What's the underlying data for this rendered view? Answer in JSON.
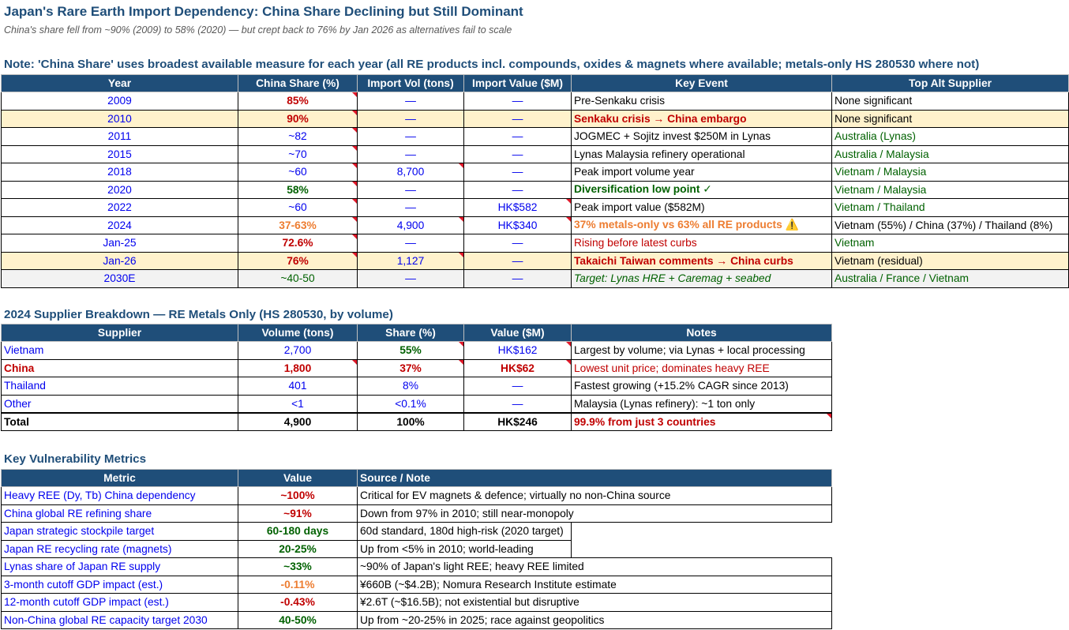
{
  "header": {
    "title": "Japan's Rare Earth Import Dependency: China Share Declining but Still Dominant",
    "subtitle": "China's share fell from ~90% (2009) to 58% (2020) — but crept back to 76% by Jan 2026 as alternatives fail to scale",
    "note": "Note: 'China Share' uses broadest available measure for each year (all RE products incl. compounds, oxides & magnets where available; metals-only HS 280530 where not)"
  },
  "timeline": {
    "columns": [
      "Year",
      "China Share (%)",
      "Import Vol (tons)",
      "Import Value ($M)",
      "Key Event",
      "Top Alt Supplier"
    ],
    "rows": [
      {
        "year": "2009",
        "share": "85%",
        "vol": "—",
        "value": "—",
        "event": "Pre-Senkaku crisis",
        "supplier": "None significant"
      },
      {
        "year": "2010",
        "share": "90%",
        "vol": "—",
        "value": "—",
        "event": "Senkaku crisis → China embargo",
        "supplier": "None significant"
      },
      {
        "year": "2011",
        "share": "~82",
        "vol": "—",
        "value": "—",
        "event": "JOGMEC + Sojitz invest $250M in Lynas",
        "supplier": "Australia (Lynas)"
      },
      {
        "year": "2015",
        "share": "~70",
        "vol": "—",
        "value": "—",
        "event": "Lynas Malaysia refinery operational",
        "supplier": "Australia / Malaysia"
      },
      {
        "year": "2018",
        "share": "~60",
        "vol": "8,700",
        "value": "—",
        "event": "Peak import volume year",
        "supplier": "Vietnam / Malaysia"
      },
      {
        "year": "2020",
        "share": "58%",
        "vol": "—",
        "value": "—",
        "event": "Diversification low point ✓",
        "supplier": "Vietnam / Malaysia"
      },
      {
        "year": "2022",
        "share": "~60",
        "vol": "—",
        "value": "HK$582",
        "event": "Peak import value ($582M)",
        "supplier": "Vietnam / Thailand"
      },
      {
        "year": "2024",
        "share": "37-63%",
        "vol": "4,900",
        "value": "HK$340",
        "event": "37% metals-only vs 63% all RE products ⚠️",
        "supplier": "Vietnam (55%) / China (37%) / Thailand (8%)"
      },
      {
        "year": "Jan-25",
        "share": "72.6%",
        "vol": "—",
        "value": "—",
        "event": "Rising before latest curbs",
        "supplier": "Vietnam"
      },
      {
        "year": "Jan-26",
        "share": "76%",
        "vol": "1,127",
        "value": "—",
        "event": "Takaichi Taiwan comments → China curbs",
        "supplier": "Vietnam (residual)"
      },
      {
        "year": "2030E",
        "share": "~40-50",
        "vol": "—",
        "value": "—",
        "event": "Target: Lynas HRE + Caremag + seabed",
        "supplier": "Australia / France / Vietnam"
      }
    ]
  },
  "breakdown": {
    "title": "2024 Supplier Breakdown — RE Metals Only (HS 280530, by volume)",
    "columns": [
      "Supplier",
      "Volume (tons)",
      "Share (%)",
      "Value ($M)",
      "Notes"
    ],
    "rows": [
      {
        "supplier": "Vietnam",
        "volume": "2,700",
        "share": "55%",
        "value": "HK$162",
        "notes": "Largest by volume; via Lynas + local processing"
      },
      {
        "supplier": "China",
        "volume": "1,800",
        "share": "37%",
        "value": "HK$62",
        "notes": "Lowest unit price; dominates heavy REE"
      },
      {
        "supplier": "Thailand",
        "volume": "401",
        "share": "8%",
        "value": "—",
        "notes": "Fastest growing (+15.2% CAGR since 2013)"
      },
      {
        "supplier": "Other",
        "volume": "<1",
        "share": "<0.1%",
        "value": "—",
        "notes": "Malaysia (Lynas refinery): ~1 ton only"
      }
    ],
    "total": {
      "supplier": "Total",
      "volume": "4,900",
      "share": "100%",
      "value": "HK$246",
      "notes": "99.9% from just 3 countries"
    }
  },
  "metrics": {
    "title": "Key Vulnerability Metrics",
    "columns": [
      "Metric",
      "Value",
      "Source / Note"
    ],
    "rows": [
      {
        "metric": "Heavy REE (Dy, Tb) China dependency",
        "value": "~100%",
        "note": "Critical for EV magnets & defence; virtually no non-China source"
      },
      {
        "metric": "China global RE refining share",
        "value": "~91%",
        "note": "Down from 97% in 2010; still near-monopoly"
      },
      {
        "metric": "Japan strategic stockpile target",
        "value": "60-180 days",
        "note": "60d standard, 180d high-risk (2020 target)"
      },
      {
        "metric": "Japan RE recycling rate (magnets)",
        "value": "20-25%",
        "note": "Up from <5% in 2010; world-leading"
      },
      {
        "metric": "Lynas share of Japan RE supply",
        "value": "~33%",
        "note": "~90% of Japan's light REE; heavy REE limited"
      },
      {
        "metric": "3-month cutoff GDP impact (est.)",
        "value": "-0.11%",
        "note": "¥660B (~$4.2B); Nomura Research Institute estimate"
      },
      {
        "metric": "12-month cutoff GDP impact (est.)",
        "value": "-0.43%",
        "note": "¥2.6T (~$16.5B); not existential but disruptive"
      },
      {
        "metric": "Non-China global RE capacity target 2030",
        "value": "40-50%",
        "note": "Up from ~20-25% in 2025; race against geopolitics"
      }
    ]
  }
}
